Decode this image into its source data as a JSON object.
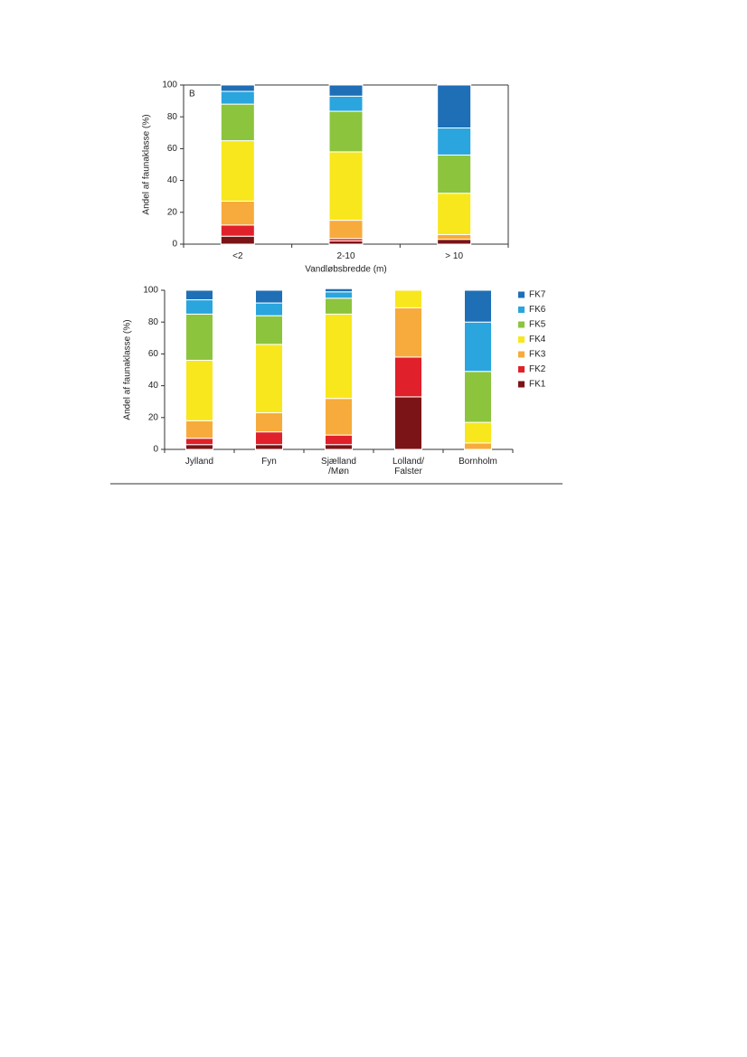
{
  "chart_data": [
    {
      "type": "bar",
      "stacked": true,
      "annotation": "B",
      "x_label": "Vandløbsbredde (m)",
      "y_label": "Andel af faunaklasse (%)",
      "categories": [
        "<2",
        "2-10",
        "> 10"
      ],
      "ylim": [
        0,
        100
      ],
      "yticks": [
        0,
        20,
        40,
        60,
        80,
        100
      ],
      "legend": false,
      "series": [
        {
          "name": "FK1",
          "color": "#7b1416",
          "values": [
            5,
            2,
            3
          ]
        },
        {
          "name": "FK2",
          "color": "#e0202a",
          "values": [
            7,
            1.5,
            0
          ]
        },
        {
          "name": "FK3",
          "color": "#f7ab3c",
          "values": [
            15,
            11.5,
            3
          ]
        },
        {
          "name": "FK4",
          "color": "#f8e71c",
          "values": [
            38,
            43,
            26
          ]
        },
        {
          "name": "FK5",
          "color": "#8cc43e",
          "values": [
            23,
            25.5,
            24
          ]
        },
        {
          "name": "FK6",
          "color": "#2aa5de",
          "values": [
            8,
            9.5,
            17
          ]
        },
        {
          "name": "FK7",
          "color": "#1f6fb6",
          "values": [
            4,
            7,
            27
          ]
        }
      ]
    },
    {
      "type": "bar",
      "stacked": true,
      "y_label": "Andel af faunaklasse (%)",
      "categories": [
        "Jylland",
        "Fyn",
        "Sjælland\n/Møn",
        "Lolland/\nFalster",
        "Bornholm"
      ],
      "ylim": [
        0,
        100
      ],
      "yticks": [
        0,
        20,
        40,
        60,
        80,
        100
      ],
      "legend": true,
      "legend_position": "right",
      "series": [
        {
          "name": "FK1",
          "color": "#7b1416",
          "values": [
            3,
            3,
            3,
            33,
            0
          ]
        },
        {
          "name": "FK2",
          "color": "#e0202a",
          "values": [
            4,
            8,
            6,
            25,
            0
          ]
        },
        {
          "name": "FK3",
          "color": "#f7ab3c",
          "values": [
            11,
            12,
            23,
            31,
            4
          ]
        },
        {
          "name": "FK4",
          "color": "#f8e71c",
          "values": [
            38,
            43,
            53,
            11,
            13
          ]
        },
        {
          "name": "FK5",
          "color": "#8cc43e",
          "values": [
            29,
            18,
            10,
            0,
            32
          ]
        },
        {
          "name": "FK6",
          "color": "#2aa5de",
          "values": [
            9,
            8,
            4,
            0,
            31
          ]
        },
        {
          "name": "FK7",
          "color": "#1f6fb6",
          "values": [
            6,
            8,
            2,
            0,
            20
          ]
        }
      ]
    }
  ]
}
